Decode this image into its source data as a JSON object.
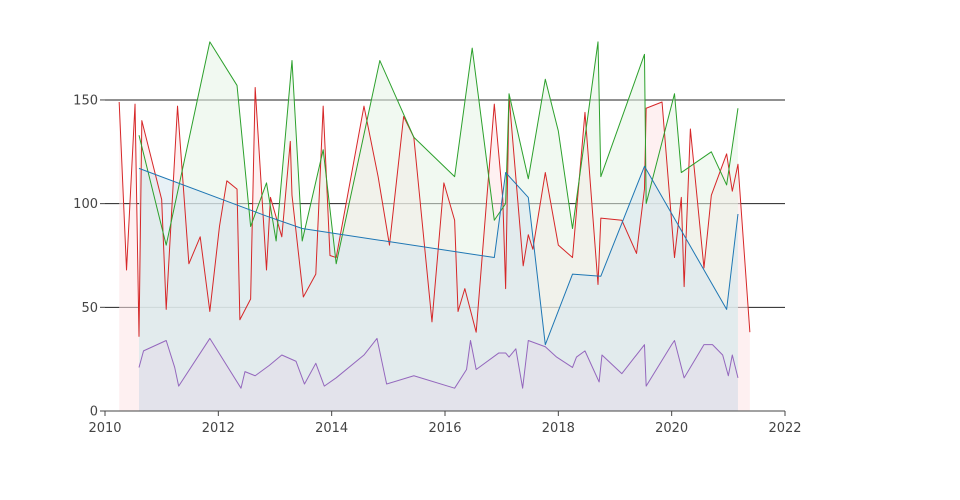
{
  "chart_data": {
    "type": "area",
    "title": "",
    "xlabel": "",
    "ylabel": "",
    "xlim": [
      2010,
      2022
    ],
    "ylim": [
      0,
      190
    ],
    "x_ticks": [
      2010,
      2012,
      2014,
      2016,
      2018,
      2020,
      2022
    ],
    "y_ticks": [
      0,
      50,
      100,
      150
    ],
    "x_tick_labels": [
      "2010",
      "2012",
      "2014",
      "2016",
      "2018",
      "2020",
      "2022"
    ],
    "y_tick_labels": [
      "0",
      "50",
      "100",
      "150"
    ],
    "grid": "horizontal at 50, 100, 150",
    "legend": "none",
    "series": [
      {
        "color": "#d62728",
        "fill": "#fde4e6",
        "x": [
          2010.25,
          2010.38,
          2010.53,
          2010.6,
          2010.65,
          2011.0,
          2011.08,
          2011.28,
          2011.48,
          2011.68,
          2011.85,
          2012.02,
          2012.15,
          2012.33,
          2012.38,
          2012.57,
          2012.65,
          2012.85,
          2012.92,
          2013.12,
          2013.27,
          2013.3,
          2013.5,
          2013.72,
          2013.85,
          2013.97,
          2014.08,
          2014.57,
          2014.82,
          2015.02,
          2015.27,
          2015.45,
          2015.77,
          2015.98,
          2016.17,
          2016.23,
          2016.35,
          2016.55,
          2016.87,
          2017.02,
          2017.07,
          2017.13,
          2017.38,
          2017.47,
          2017.55,
          2017.77,
          2018.0,
          2018.25,
          2018.47,
          2018.7,
          2018.75,
          2019.12,
          2019.38,
          2019.52,
          2019.55,
          2019.83,
          2020.05,
          2020.17,
          2020.22,
          2020.33,
          2020.57,
          2020.7,
          2020.97,
          2021.07,
          2021.17,
          2021.38
        ],
        "y": [
          149,
          68,
          148,
          36,
          140,
          102,
          49,
          147,
          71,
          84,
          48,
          89,
          111,
          107,
          44,
          54,
          156,
          68,
          103,
          84,
          130,
          104,
          55,
          66,
          147,
          75,
          74,
          147,
          113,
          80,
          142,
          132,
          43,
          110,
          92,
          48,
          59,
          38,
          148,
          102,
          59,
          152,
          70,
          85,
          78,
          115,
          80,
          74,
          144,
          61,
          93,
          92,
          76,
          107,
          146,
          149,
          74,
          103,
          60,
          136,
          69,
          104,
          124,
          106,
          119,
          38
        ]
      },
      {
        "color": "#2ca02c",
        "fill": "#e6f4e6",
        "x": [
          2010.6,
          2011.08,
          2011.85,
          2012.33,
          2012.57,
          2012.85,
          2013.02,
          2013.3,
          2013.48,
          2013.85,
          2014.08,
          2014.85,
          2015.45,
          2016.17,
          2016.48,
          2016.87,
          2017.07,
          2017.13,
          2017.47,
          2017.77,
          2018.0,
          2018.25,
          2018.7,
          2018.75,
          2019.52,
          2019.55,
          2020.05,
          2020.17,
          2020.7,
          2020.97,
          2021.17
        ],
        "y": [
          133,
          80,
          178,
          157,
          89,
          110,
          82,
          169,
          82,
          126,
          71,
          169,
          132,
          113,
          175,
          92,
          100,
          153,
          112,
          160,
          135,
          88,
          178,
          113,
          172,
          100,
          153,
          115,
          125,
          109,
          146
        ]
      },
      {
        "color": "#1f77b4",
        "fill": "#d5e6ef",
        "x": [
          2010.6,
          2012.85,
          2013.48,
          2016.87,
          2017.07,
          2017.47,
          2017.77,
          2018.25,
          2018.75,
          2019.52,
          2020.97,
          2021.17
        ],
        "y": [
          117,
          94,
          88,
          74,
          115,
          103,
          32,
          66,
          65,
          118,
          49,
          95
        ]
      },
      {
        "color": "#9467bd",
        "fill": "#e4dce9",
        "x": [
          2010.6,
          2010.68,
          2011.08,
          2011.23,
          2011.3,
          2011.85,
          2012.4,
          2012.47,
          2012.65,
          2012.9,
          2013.12,
          2013.37,
          2013.52,
          2013.72,
          2013.87,
          2014.08,
          2014.57,
          2014.8,
          2014.97,
          2015.45,
          2016.17,
          2016.38,
          2016.45,
          2016.55,
          2016.95,
          2017.07,
          2017.13,
          2017.25,
          2017.37,
          2017.47,
          2017.77,
          2017.97,
          2018.25,
          2018.32,
          2018.47,
          2018.72,
          2018.77,
          2019.12,
          2019.52,
          2019.55,
          2020.0,
          2020.05,
          2020.22,
          2020.57,
          2020.72,
          2020.9,
          2021.0,
          2021.07,
          2021.17
        ],
        "y": [
          21,
          29,
          34,
          21,
          12,
          35,
          11,
          19,
          17,
          22,
          27,
          24,
          13,
          23,
          12,
          16,
          27,
          35,
          13,
          17,
          11,
          20,
          34,
          20,
          28,
          28,
          26,
          30,
          11,
          34,
          31,
          26,
          21,
          26,
          29,
          14,
          27,
          18,
          32,
          12,
          32,
          34,
          16,
          32,
          32,
          27,
          17,
          27,
          16
        ]
      }
    ]
  }
}
